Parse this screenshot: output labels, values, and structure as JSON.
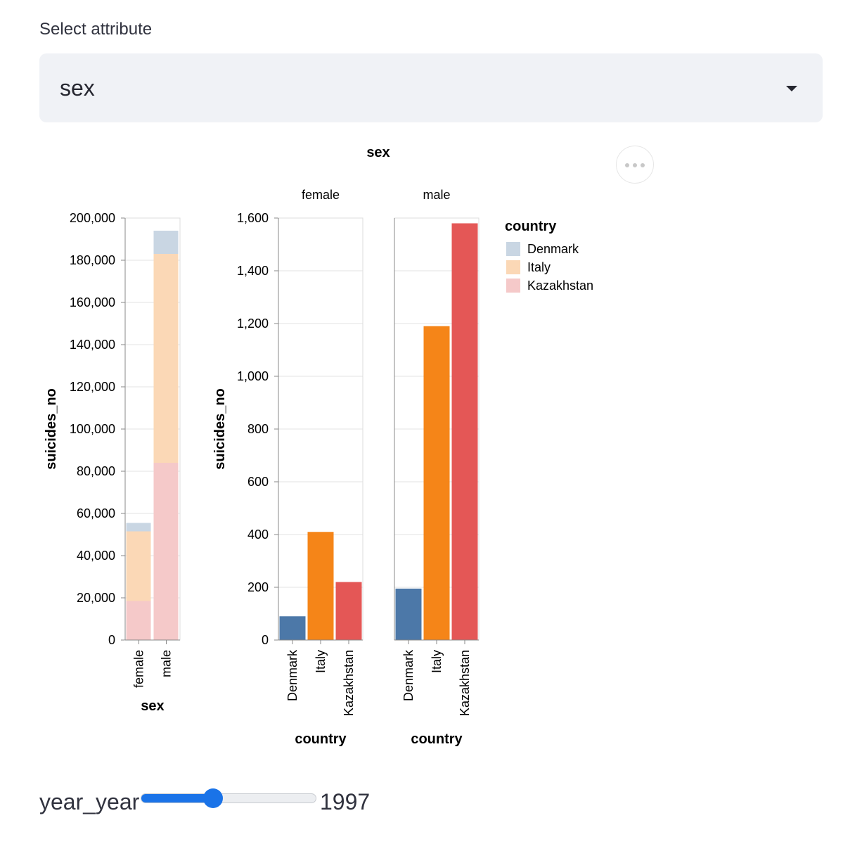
{
  "select": {
    "label": "Select attribute",
    "value": "sex"
  },
  "slider": {
    "label": "year_year",
    "value": "1997",
    "fraction": 0.41
  },
  "colors": {
    "Denmark": "#4c78a8",
    "Italy": "#f58518",
    "Kazakhstan": "#e45756",
    "Denmark_light": "#c9d6e3",
    "Italy_light": "#fbd8b6",
    "Kazakhstan_light": "#f5c9c9"
  },
  "chart_data": [
    {
      "type": "bar",
      "stacked": true,
      "xlabel": "sex",
      "ylabel": "suicides_no",
      "categories": [
        "female",
        "male"
      ],
      "ylim": [
        0,
        200000
      ],
      "yticks": [
        "0",
        "20,000",
        "40,000",
        "60,000",
        "80,000",
        "100,000",
        "120,000",
        "140,000",
        "160,000",
        "180,000",
        "200,000"
      ],
      "series": [
        {
          "name": "Kazakhstan",
          "values": [
            18500,
            84000
          ]
        },
        {
          "name": "Italy",
          "values": [
            33000,
            99000
          ]
        },
        {
          "name": "Denmark",
          "values": [
            4000,
            11000
          ]
        }
      ]
    },
    {
      "type": "bar",
      "title": "sex",
      "facets": [
        "female",
        "male"
      ],
      "xlabel": "country",
      "ylabel": "suicides_no",
      "categories": [
        "Denmark",
        "Italy",
        "Kazakhstan"
      ],
      "ylim": [
        0,
        1600
      ],
      "yticks": [
        "0",
        "200",
        "400",
        "600",
        "800",
        "1,000",
        "1,200",
        "1,400",
        "1,600"
      ],
      "values": {
        "female": [
          90,
          410,
          220
        ],
        "male": [
          195,
          1190,
          1580
        ]
      },
      "legend": {
        "title": "country",
        "entries": [
          "Denmark",
          "Italy",
          "Kazakhstan"
        ],
        "placement": "right"
      }
    }
  ]
}
